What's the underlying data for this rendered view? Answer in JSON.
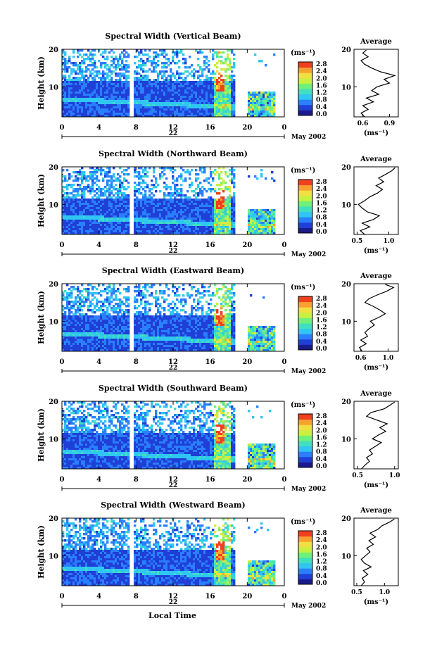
{
  "panels": [
    {
      "title": "Spectral Width (Vertical Beam)",
      "avg_title": "Average",
      "avg_xticks": [
        "0.6",
        "0.9"
      ],
      "avg_xticks_v": [
        0.6,
        0.9
      ],
      "avg_xlim": [
        0.5,
        1.0
      ],
      "profile": [
        [
          0.62,
          2
        ],
        [
          0.58,
          3
        ],
        [
          0.66,
          4
        ],
        [
          0.6,
          5
        ],
        [
          0.72,
          6
        ],
        [
          0.64,
          7
        ],
        [
          0.78,
          8
        ],
        [
          0.7,
          9
        ],
        [
          0.76,
          10
        ],
        [
          0.9,
          11
        ],
        [
          0.84,
          12
        ],
        [
          0.96,
          13
        ],
        [
          0.8,
          14
        ],
        [
          0.7,
          15
        ],
        [
          0.62,
          16
        ],
        [
          0.58,
          17
        ],
        [
          0.66,
          18
        ],
        [
          0.6,
          19
        ],
        [
          0.64,
          19.8
        ]
      ]
    },
    {
      "title": "Spectral Width (Northward Beam)",
      "avg_title": "Average",
      "avg_xticks": [
        "0.5",
        "1.0"
      ],
      "avg_xticks_v": [
        0.5,
        1.0
      ],
      "avg_xlim": [
        0.45,
        1.15
      ],
      "profile": [
        [
          0.62,
          2
        ],
        [
          0.55,
          3
        ],
        [
          0.7,
          4
        ],
        [
          0.58,
          5
        ],
        [
          0.76,
          6
        ],
        [
          0.85,
          7
        ],
        [
          0.66,
          8
        ],
        [
          0.58,
          9
        ],
        [
          0.52,
          10
        ],
        [
          0.62,
          11
        ],
        [
          0.7,
          12
        ],
        [
          0.82,
          13
        ],
        [
          0.9,
          14
        ],
        [
          0.8,
          15
        ],
        [
          0.92,
          16
        ],
        [
          0.84,
          17
        ],
        [
          0.95,
          18
        ],
        [
          1.05,
          19
        ],
        [
          1.1,
          19.8
        ]
      ]
    },
    {
      "title": "Spectral Width (Eastward Beam)",
      "avg_title": "Average",
      "avg_xticks": [
        "0.6",
        "1.0"
      ],
      "avg_xticks_v": [
        0.6,
        1.0
      ],
      "avg_xlim": [
        0.5,
        1.15
      ],
      "profile": [
        [
          0.62,
          2
        ],
        [
          0.58,
          3
        ],
        [
          0.68,
          4
        ],
        [
          0.6,
          5
        ],
        [
          0.7,
          6
        ],
        [
          0.66,
          7
        ],
        [
          0.72,
          8
        ],
        [
          0.8,
          9
        ],
        [
          0.74,
          10
        ],
        [
          0.86,
          11
        ],
        [
          0.96,
          12
        ],
        [
          0.88,
          13
        ],
        [
          0.78,
          14
        ],
        [
          0.66,
          15
        ],
        [
          0.72,
          16
        ],
        [
          0.84,
          17
        ],
        [
          0.98,
          18
        ],
        [
          1.08,
          19
        ],
        [
          0.96,
          19.8
        ]
      ]
    },
    {
      "title": "Spectral Width (Southward Beam)",
      "avg_title": "Average",
      "avg_xticks": [
        "0.5",
        "1.0"
      ],
      "avg_xticks_v": [
        0.5,
        1.0
      ],
      "avg_xlim": [
        0.45,
        1.05
      ],
      "profile": [
        [
          0.55,
          2
        ],
        [
          0.6,
          3
        ],
        [
          0.66,
          4
        ],
        [
          0.62,
          5
        ],
        [
          0.7,
          6
        ],
        [
          0.66,
          7
        ],
        [
          0.74,
          8
        ],
        [
          0.82,
          9
        ],
        [
          0.7,
          10
        ],
        [
          0.78,
          11
        ],
        [
          0.88,
          12
        ],
        [
          0.8,
          13
        ],
        [
          0.9,
          14
        ],
        [
          0.76,
          15
        ],
        [
          0.62,
          16
        ],
        [
          0.68,
          17
        ],
        [
          0.86,
          18
        ],
        [
          0.94,
          19
        ],
        [
          1.0,
          19.8
        ]
      ]
    },
    {
      "title": "Spectral Width (Westward Beam)",
      "avg_title": "Average",
      "avg_xticks": [
        "0.5",
        "1.0"
      ],
      "avg_xticks_v": [
        0.5,
        1.0
      ],
      "avg_xlim": [
        0.45,
        1.25
      ],
      "profile": [
        [
          0.58,
          2
        ],
        [
          0.64,
          3
        ],
        [
          0.6,
          4
        ],
        [
          0.7,
          5
        ],
        [
          0.62,
          6
        ],
        [
          0.76,
          7
        ],
        [
          0.64,
          8
        ],
        [
          0.58,
          9
        ],
        [
          0.66,
          10
        ],
        [
          0.74,
          11
        ],
        [
          0.68,
          12
        ],
        [
          0.8,
          13
        ],
        [
          0.72,
          14
        ],
        [
          0.84,
          15
        ],
        [
          0.74,
          16
        ],
        [
          0.88,
          17
        ],
        [
          0.96,
          18
        ],
        [
          1.1,
          19
        ],
        [
          1.18,
          19.8
        ]
      ]
    }
  ],
  "axes": {
    "ylabel": "Height (km)",
    "yticks": [
      "20",
      "10"
    ],
    "xticks": [
      "0",
      "4",
      "8",
      "12",
      "16",
      "20",
      "0"
    ],
    "day_label": "22",
    "month_label": "May 2002",
    "xlabel": "Local Time",
    "avg_yticks": [
      "20",
      "10"
    ]
  },
  "colorbar": {
    "unit": "(ms⁻¹)",
    "ticks": [
      "2.8",
      "2.4",
      "2.0",
      "1.6",
      "1.2",
      "0.8",
      "0.4",
      "0.0"
    ]
  },
  "avg_unit": "(ms⁻¹)",
  "colors": {
    "scale": [
      "#1a1a8a",
      "#1f3fd6",
      "#2a7fff",
      "#2fc6f2",
      "#3fe0c0",
      "#6ff07a",
      "#c8f040",
      "#f0e040",
      "#f8a030",
      "#f04020"
    ]
  },
  "chart_data": [
    {
      "type": "heatmap",
      "title": "Spectral Width (Vertical Beam)",
      "xlabel": "Local Time",
      "ylabel": "Height (km)",
      "x_range": [
        0,
        24
      ],
      "y_range": [
        2,
        20
      ],
      "colorbar_range": [
        0.0,
        2.8
      ],
      "colorbar_unit": "(ms⁻¹)",
      "data_gaps_hours": [
        [
          7.2,
          7.6
        ],
        [
          18.5,
          20.0
        ]
      ]
    },
    {
      "type": "heatmap",
      "title": "Spectral Width (Northward Beam)",
      "xlabel": "Local Time",
      "ylabel": "Height (km)",
      "x_range": [
        0,
        24
      ],
      "y_range": [
        2,
        20
      ],
      "colorbar_range": [
        0.0,
        2.8
      ],
      "colorbar_unit": "(ms⁻¹)",
      "data_gaps_hours": [
        [
          7.2,
          7.6
        ],
        [
          18.5,
          20.0
        ]
      ]
    },
    {
      "type": "heatmap",
      "title": "Spectral Width (Eastward Beam)",
      "xlabel": "Local Time",
      "ylabel": "Height (km)",
      "x_range": [
        0,
        24
      ],
      "y_range": [
        2,
        20
      ],
      "colorbar_range": [
        0.0,
        2.8
      ],
      "colorbar_unit": "(ms⁻¹)",
      "data_gaps_hours": [
        [
          7.2,
          7.6
        ],
        [
          18.5,
          20.0
        ]
      ]
    },
    {
      "type": "heatmap",
      "title": "Spectral Width (Southward Beam)",
      "xlabel": "Local Time",
      "ylabel": "Height (km)",
      "x_range": [
        0,
        24
      ],
      "y_range": [
        2,
        20
      ],
      "colorbar_range": [
        0.0,
        2.8
      ],
      "colorbar_unit": "(ms⁻¹)",
      "data_gaps_hours": [
        [
          7.2,
          7.6
        ],
        [
          18.5,
          20.0
        ]
      ]
    },
    {
      "type": "heatmap",
      "title": "Spectral Width (Westward Beam)",
      "xlabel": "Local Time",
      "ylabel": "Height (km)",
      "x_range": [
        0,
        24
      ],
      "y_range": [
        2,
        20
      ],
      "colorbar_range": [
        0.0,
        2.8
      ],
      "colorbar_unit": "(ms⁻¹)",
      "data_gaps_hours": [
        [
          7.2,
          7.6
        ],
        [
          18.5,
          20.0
        ]
      ]
    }
  ]
}
